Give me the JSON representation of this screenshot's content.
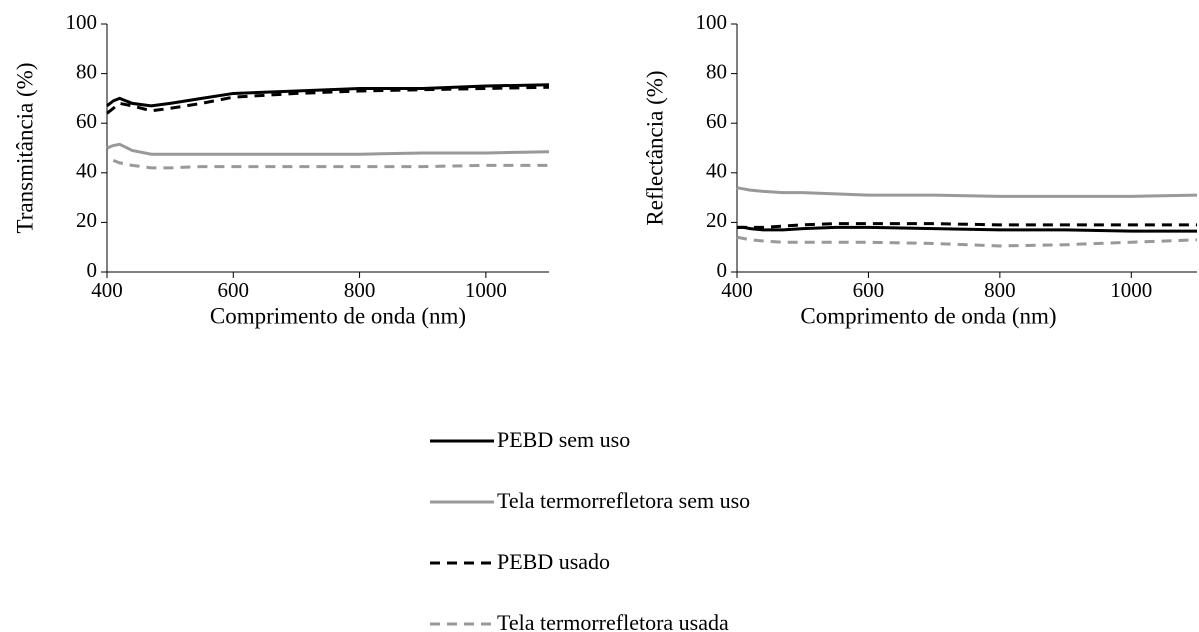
{
  "chart_data": [
    {
      "type": "line",
      "xlabel": "Comprimento de onda (nm)",
      "ylabel": "Transmitância (%)",
      "x": [
        400,
        410,
        420,
        440,
        470,
        500,
        550,
        600,
        700,
        800,
        900,
        1000,
        1100
      ],
      "xlim": [
        400,
        1100
      ],
      "xticks": [
        400,
        600,
        800,
        1000
      ],
      "ylim": [
        0,
        100
      ],
      "yticks": [
        0,
        20,
        40,
        60,
        80,
        100
      ],
      "series": [
        {
          "name": "PEBD sem uso",
          "color": "#000000",
          "dashed": false,
          "values": [
            67,
            69,
            70,
            68,
            67,
            68,
            70,
            72,
            73,
            74,
            74,
            75,
            75.5
          ]
        },
        {
          "name": "Tela termorrefletora sem uso",
          "color": "#999999",
          "dashed": false,
          "values": [
            50,
            51,
            51.5,
            49,
            47.5,
            47.5,
            47.5,
            47.5,
            47.5,
            47.5,
            48,
            48,
            48.5
          ]
        },
        {
          "name": "PEBD usado",
          "color": "#000000",
          "dashed": true,
          "values": [
            64,
            66,
            68,
            67,
            65,
            66,
            68,
            70.5,
            72,
            73,
            73.5,
            74,
            74.5
          ]
        },
        {
          "name": "Tela termorrefletora usada",
          "color": "#999999",
          "dashed": true,
          "values": [
            null,
            45,
            44,
            43,
            42,
            42,
            42.5,
            42.5,
            42.5,
            42.5,
            42.5,
            43,
            43
          ]
        }
      ]
    },
    {
      "type": "line",
      "xlabel": "Comprimento de onda (nm)",
      "ylabel": "Reflectância (%)",
      "x": [
        400,
        410,
        420,
        440,
        470,
        500,
        550,
        600,
        700,
        800,
        900,
        1000,
        1100
      ],
      "xlim": [
        400,
        1100
      ],
      "xticks": [
        400,
        600,
        800,
        1000
      ],
      "ylim": [
        0,
        100
      ],
      "yticks": [
        0,
        20,
        40,
        60,
        80,
        100
      ],
      "series": [
        {
          "color": "#000000",
          "dashed": false,
          "values": [
            18,
            18,
            17.5,
            17,
            17,
            17.5,
            18,
            18,
            17.5,
            17,
            17,
            16.5,
            16.5
          ]
        },
        {
          "color": "#999999",
          "dashed": false,
          "values": [
            34,
            33.5,
            33,
            32.5,
            32,
            32,
            31.5,
            31,
            31,
            30.5,
            30.5,
            30.5,
            31
          ]
        },
        {
          "color": "#000000",
          "dashed": true,
          "values": [
            18,
            18,
            18,
            18,
            18.5,
            19,
            19.5,
            19.5,
            19.5,
            19,
            19,
            19,
            19
          ]
        },
        {
          "color": "#999999",
          "dashed": true,
          "values": [
            14,
            13.5,
            13,
            12.5,
            12,
            12,
            12,
            12,
            11.5,
            10.5,
            11,
            12,
            13
          ]
        }
      ]
    }
  ]
}
